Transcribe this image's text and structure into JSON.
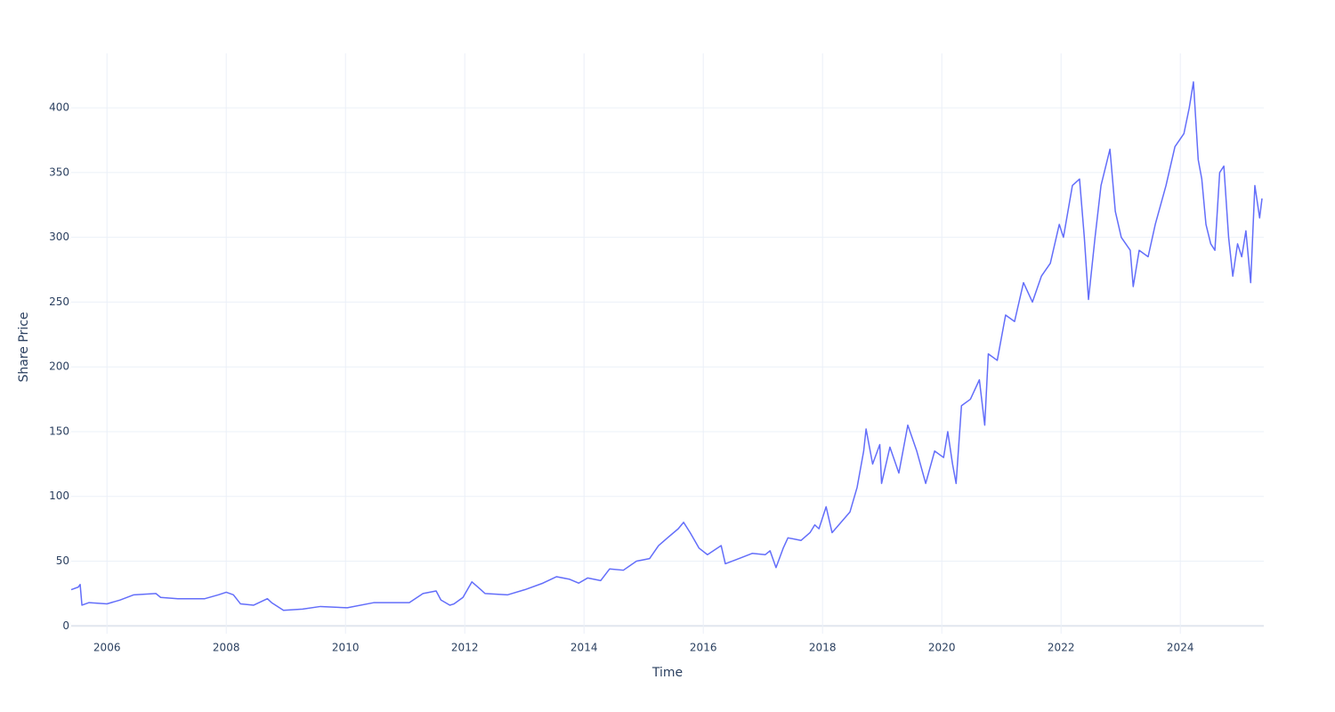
{
  "chart_data": {
    "type": "line",
    "x_label": "Time",
    "y_label": "Share Price",
    "xlim": [
      2005.4,
      2025.4
    ],
    "xticks": [
      2006,
      2008,
      2010,
      2012,
      2014,
      2016,
      2018,
      2020,
      2022,
      2024
    ],
    "ylim": [
      -6,
      442
    ],
    "yticks": [
      0,
      50,
      100,
      150,
      200,
      250,
      300,
      350,
      400
    ],
    "grid": true,
    "series": [
      {
        "color": "#636efa",
        "x": [
          2005.4,
          2005.52,
          2005.55,
          2005.58,
          2005.7,
          2006.0,
          2006.22,
          2006.45,
          2006.82,
          2006.9,
          2007.19,
          2007.64,
          2007.87,
          2008.0,
          2008.12,
          2008.24,
          2008.46,
          2008.69,
          2008.76,
          2008.96,
          2009.28,
          2009.58,
          2010.03,
          2010.48,
          2010.78,
          2011.07,
          2011.3,
          2011.52,
          2011.6,
          2011.75,
          2011.82,
          2011.97,
          2012.12,
          2012.27,
          2012.34,
          2012.72,
          2013.01,
          2013.31,
          2013.54,
          2013.76,
          2013.91,
          2014.06,
          2014.28,
          2014.43,
          2014.66,
          2014.88,
          2015.1,
          2015.25,
          2015.4,
          2015.58,
          2015.67,
          2015.78,
          2015.93,
          2016.07,
          2016.3,
          2016.37,
          2016.6,
          2016.82,
          2017.04,
          2017.12,
          2017.22,
          2017.34,
          2017.42,
          2017.64,
          2017.79,
          2017.87,
          2017.94,
          2018.06,
          2018.16,
          2018.31,
          2018.46,
          2018.58,
          2018.69,
          2018.73,
          2018.84,
          2018.96,
          2018.99,
          2019.13,
          2019.28,
          2019.43,
          2019.58,
          2019.73,
          2019.88,
          2020.03,
          2020.1,
          2020.18,
          2020.24,
          2020.33,
          2020.48,
          2020.63,
          2020.72,
          2020.78,
          2020.93,
          2021.07,
          2021.22,
          2021.37,
          2021.52,
          2021.67,
          2021.82,
          2021.97,
          2022.04,
          2022.19,
          2022.31,
          2022.39,
          2022.46,
          2022.57,
          2022.67,
          2022.82,
          2022.91,
          2023.01,
          2023.16,
          2023.21,
          2023.31,
          2023.46,
          2023.58,
          2023.76,
          2023.91,
          2024.06,
          2024.15,
          2024.22,
          2024.3,
          2024.36,
          2024.43,
          2024.51,
          2024.58,
          2024.66,
          2024.73,
          2024.81,
          2024.88,
          2024.96,
          2025.03,
          2025.1,
          2025.18,
          2025.25,
          2025.33,
          2025.37
        ],
        "values": [
          28,
          30,
          32,
          16,
          18,
          17,
          20,
          24,
          25,
          22,
          21,
          21,
          24,
          26,
          24,
          17,
          16,
          21,
          18,
          12,
          13,
          15,
          14,
          18,
          18,
          18,
          25,
          27,
          20,
          16,
          17,
          22,
          34,
          28,
          25,
          24,
          28,
          33,
          38,
          36,
          33,
          37,
          35,
          44,
          43,
          50,
          52,
          62,
          68,
          75,
          80,
          72,
          60,
          55,
          62,
          48,
          52,
          56,
          55,
          58,
          45,
          60,
          68,
          66,
          72,
          78,
          75,
          92,
          72,
          80,
          88,
          107,
          135,
          152,
          125,
          140,
          110,
          138,
          118,
          155,
          135,
          110,
          135,
          130,
          150,
          125,
          110,
          170,
          175,
          190,
          155,
          210,
          205,
          240,
          235,
          265,
          250,
          270,
          280,
          310,
          300,
          340,
          345,
          300,
          252,
          300,
          340,
          368,
          320,
          300,
          290,
          262,
          290,
          285,
          310,
          340,
          370,
          380,
          400,
          420,
          360,
          345,
          310,
          295,
          290,
          350,
          355,
          300,
          270,
          295,
          285,
          305,
          265,
          340,
          315,
          330
        ]
      }
    ]
  }
}
